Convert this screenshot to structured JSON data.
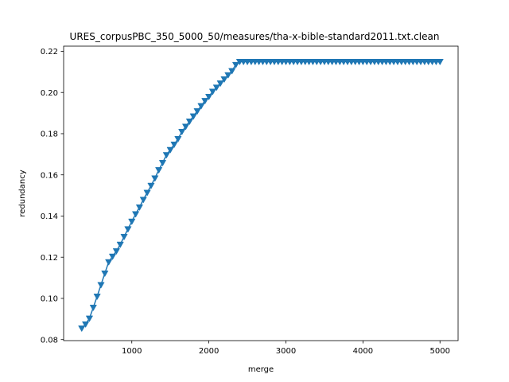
{
  "chart_data": {
    "type": "line",
    "title": "URES_corpusPBC_350_5000_50/measures/tha-x-bible-standard2011.txt.clean",
    "xlabel": "merge",
    "ylabel": "redundancy",
    "xlim": [
      115,
      5235
    ],
    "ylim": [
      0.0795,
      0.2225
    ],
    "xticks": [
      1000,
      2000,
      3000,
      4000,
      5000
    ],
    "xtick_labels": [
      "1000",
      "2000",
      "3000",
      "4000",
      "5000"
    ],
    "yticks": [
      0.08,
      0.1,
      0.12,
      0.14,
      0.16,
      0.18,
      0.2,
      0.22
    ],
    "ytick_labels": [
      "0.08",
      "0.10",
      "0.12",
      "0.14",
      "0.16",
      "0.18",
      "0.20",
      "0.22"
    ],
    "grid": false,
    "marker": "triangle-down",
    "series": [
      {
        "color": "#1f77b4",
        "x": [
          350,
          400,
          450,
          500,
          550,
          600,
          650,
          700,
          750,
          800,
          850,
          900,
          950,
          1000,
          1050,
          1100,
          1150,
          1200,
          1250,
          1300,
          1350,
          1400,
          1450,
          1500,
          1550,
          1600,
          1650,
          1700,
          1750,
          1800,
          1850,
          1900,
          1950,
          2000,
          2050,
          2100,
          2150,
          2200,
          2250,
          2300,
          2350,
          2400,
          2450,
          2500,
          2550,
          2600,
          2650,
          2700,
          2750,
          2800,
          2850,
          2900,
          2950,
          3000,
          3050,
          3100,
          3150,
          3200,
          3250,
          3300,
          3350,
          3400,
          3450,
          3500,
          3550,
          3600,
          3650,
          3700,
          3750,
          3800,
          3850,
          3900,
          3950,
          4000,
          4050,
          4100,
          4150,
          4200,
          4250,
          4300,
          4350,
          4400,
          4450,
          4500,
          4550,
          4600,
          4650,
          4700,
          4750,
          4800,
          4850,
          4900,
          4950,
          5000
        ],
        "values": [
          0.0855,
          0.0875,
          0.0903,
          0.0956,
          0.101,
          0.1066,
          0.1122,
          0.1177,
          0.1204,
          0.123,
          0.1262,
          0.13,
          0.1337,
          0.1374,
          0.141,
          0.1443,
          0.148,
          0.1514,
          0.1548,
          0.1584,
          0.1624,
          0.1659,
          0.1697,
          0.1722,
          0.1748,
          0.1775,
          0.181,
          0.1835,
          0.186,
          0.1885,
          0.191,
          0.1935,
          0.196,
          0.198,
          0.2005,
          0.2025,
          0.2045,
          0.2065,
          0.2085,
          0.2105,
          0.2135,
          0.215,
          0.215,
          0.215,
          0.215,
          0.215,
          0.215,
          0.215,
          0.215,
          0.215,
          0.215,
          0.215,
          0.215,
          0.215,
          0.215,
          0.215,
          0.215,
          0.215,
          0.215,
          0.215,
          0.215,
          0.215,
          0.215,
          0.215,
          0.215,
          0.215,
          0.215,
          0.215,
          0.215,
          0.215,
          0.215,
          0.215,
          0.215,
          0.215,
          0.215,
          0.215,
          0.215,
          0.215,
          0.215,
          0.215,
          0.215,
          0.215,
          0.215,
          0.215,
          0.215,
          0.215,
          0.215,
          0.215,
          0.215,
          0.215,
          0.215,
          0.215,
          0.215,
          0.215
        ]
      }
    ]
  }
}
